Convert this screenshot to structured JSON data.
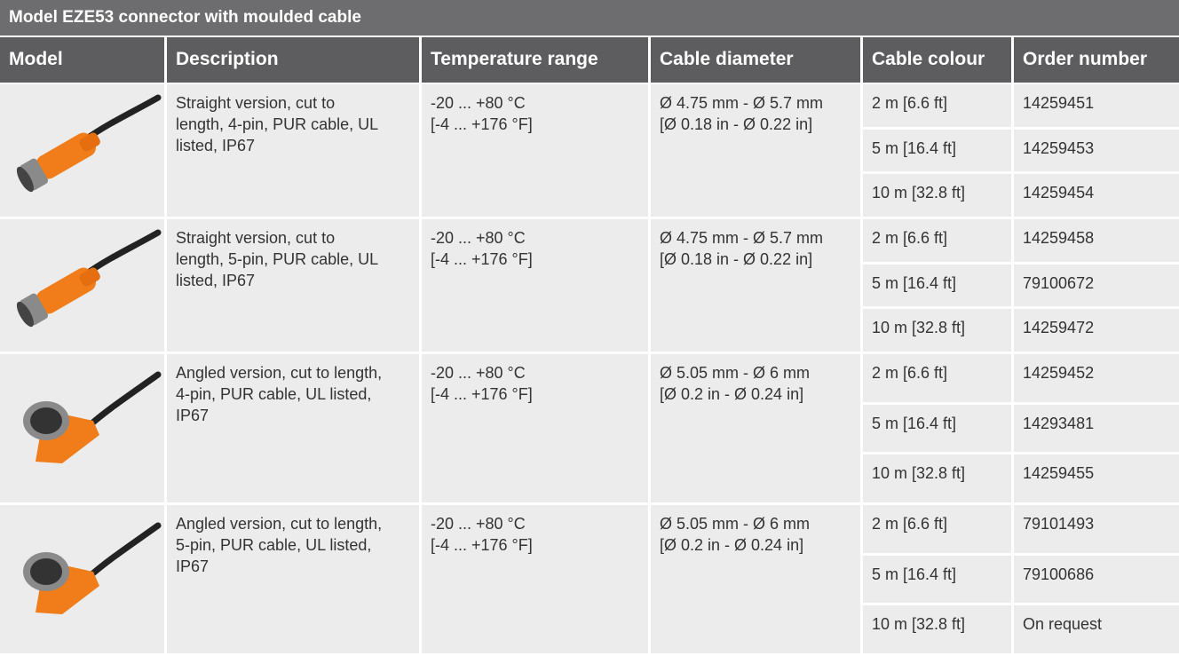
{
  "title": "Model EZE53 connector with moulded cable",
  "table": {
    "headers": [
      "Model",
      "Description",
      "Temperature range",
      "Cable diameter",
      "Cable colour",
      "Order number"
    ],
    "groups": [
      {
        "description": "Straight version, cut to length, 4-pin, PUR cable, UL listed, IP67",
        "temperature": [
          "-20 ... +80 °C",
          "[-4 ... +176 °F]"
        ],
        "diameter": [
          "Ø 4.75 mm - Ø 5.7 mm",
          "[Ø 0.18 in - Ø 0.22 in]"
        ],
        "options": [
          {
            "length": "2 m [6.6 ft]",
            "order": "14259451"
          },
          {
            "length": "5 m [16.4 ft]",
            "order": "14259453"
          },
          {
            "length": "10 m [32.8 ft]",
            "order": "14259454"
          }
        ]
      },
      {
        "description": "Straight version, cut to length, 5-pin, PUR cable, UL listed, IP67",
        "temperature": [
          "-20 ... +80 °C",
          "[-4 ... +176 °F]"
        ],
        "diameter": [
          "Ø 4.75 mm - Ø 5.7 mm",
          "[Ø 0.18 in - Ø 0.22 in]"
        ],
        "options": [
          {
            "length": "2 m [6.6 ft]",
            "order": "14259458"
          },
          {
            "length": "5 m [16.4 ft]",
            "order": "79100672"
          },
          {
            "length": "10 m [32.8 ft]",
            "order": "14259472"
          }
        ]
      },
      {
        "description": "Angled version, cut to length, 4-pin, PUR cable, UL listed, IP67",
        "temperature": [
          "-20 ... +80 °C",
          "[-4 ... +176 °F]"
        ],
        "diameter": [
          "Ø 5.05 mm - Ø 6 mm",
          "[Ø 0.2 in - Ø 0.24 in]"
        ],
        "options": [
          {
            "length": "2 m [6.6 ft]",
            "order": "14259452"
          },
          {
            "length": "5 m [16.4 ft]",
            "order": "14293481"
          },
          {
            "length": "10 m [32.8 ft]",
            "order": "14259455"
          }
        ]
      },
      {
        "description": "Angled version, cut to length, 5-pin, PUR cable, UL listed, IP67",
        "temperature": [
          "-20 ... +80 °C",
          "[-4 ... +176 °F]"
        ],
        "diameter": [
          "Ø 5.05 mm - Ø 6 mm",
          "[Ø 0.2 in - Ø 0.24 in]"
        ],
        "options": [
          {
            "length": "2 m [6.6 ft]",
            "order": "79101493"
          },
          {
            "length": "5 m [16.4 ft]",
            "order": "79100686"
          },
          {
            "length": "10 m [32.8 ft]",
            "order": "On request"
          }
        ]
      }
    ]
  }
}
